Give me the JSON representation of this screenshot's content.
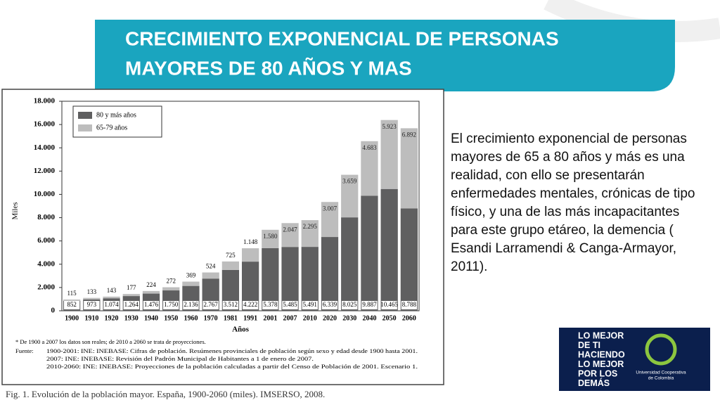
{
  "slide_title": [
    "CRECIMIENTO EXPONENCIAL DE PERSONAS",
    "MAYORES DE 80 AÑOS Y MAS"
  ],
  "chart_data": {
    "type": "stacked-bar",
    "y_label": "Miles",
    "x_label": "Años",
    "categories": [
      "1900",
      "1910",
      "1920",
      "1930",
      "1940",
      "1950",
      "1960",
      "1970",
      "1981",
      "1991",
      "2001",
      "2007",
      "2010",
      "2020",
      "2030",
      "2040",
      "2050",
      "2060"
    ],
    "series": [
      {
        "name": "80 y más años",
        "color": "#5f5f60",
        "values": [
          852,
          973,
          1074,
          1264,
          1476,
          1750,
          2136,
          2767,
          3512,
          4222,
          5378,
          5485,
          5491,
          6339,
          8025,
          9887,
          10465,
          8788
        ],
        "value_labels": [
          "852",
          "973",
          "1.074",
          "1.264",
          "1.476",
          "1.750",
          "2.136",
          "2.767",
          "3.512",
          "4.222",
          "5.378",
          "5.485",
          "5.491",
          "6.339",
          "8.025",
          "9.887",
          "10.465",
          "8.788"
        ]
      },
      {
        "name": "65-79 años",
        "color": "#bdbdbd",
        "values": [
          115,
          133,
          143,
          177,
          224,
          272,
          369,
          524,
          725,
          1148,
          1580,
          2047,
          2295,
          3007,
          3659,
          4683,
          5923,
          6892
        ],
        "value_labels": [
          "115",
          "133",
          "143",
          "177",
          "224",
          "272",
          "369",
          "524",
          "725",
          "1.148",
          "1.580",
          "2.047",
          "2.295",
          "3.007",
          "3.659",
          "4.683",
          "5.923",
          "6.892"
        ]
      }
    ],
    "ylim": [
      0,
      18000
    ],
    "yticks": [
      0,
      {
        "value": 2000,
        "label": "2.000"
      },
      {
        "value": 4000,
        "label": "4.000"
      },
      {
        "value": 6000,
        "label": "6.000"
      },
      {
        "value": 8000,
        "label": "8.000"
      },
      {
        "value": 10000,
        "label": "10.000"
      },
      {
        "value": 12000,
        "label": "12.000"
      },
      {
        "value": 14000,
        "label": "14.000"
      },
      {
        "value": 16000,
        "label": "16.000"
      },
      {
        "value": 18000,
        "label": "18.000"
      }
    ],
    "legend": "top-left",
    "notes": [
      "* De 1900 a 2007 los datos son reales; de 2010 a 2060 se trata de proyecciones."
    ],
    "source_label": "Fuente:",
    "sources": [
      "1900-2001: INE: INEBASE: Cifras de población. Resúmenes provinciales de población según sexo y edad desde 1900 hasta 2001.",
      "2007: INE: INEBASE: Revisión del Padrón Municipal de Habitantes a 1 de enero de 2007.",
      "2010-2060: INE: INEBASE: Proyecciones de la población calculadas a partir del Censo de Población de 2001. Escenario 1."
    ],
    "caption": "Fig. 1. Evolución de la población mayor. España, 1900-2060 (miles). IMSERSO, 2008."
  },
  "body_text": "El crecimiento exponencial de personas mayores de 65 a 80 años y más es una realidad, con ello se presentarán enfermedades mentales, crónicas de tipo físico, y una de las más incapacitantes para este grupo etáreo, la demencia ( Esandi Larramendi & Canga-Armayor, 2011).",
  "logo": {
    "slogan": [
      "LO MEJOR",
      "DE TI",
      "HACIENDO",
      "LO MEJOR",
      "POR LOS",
      "DEMÁS"
    ],
    "name": [
      "Universidad Cooperativa",
      "de Colombia"
    ]
  }
}
